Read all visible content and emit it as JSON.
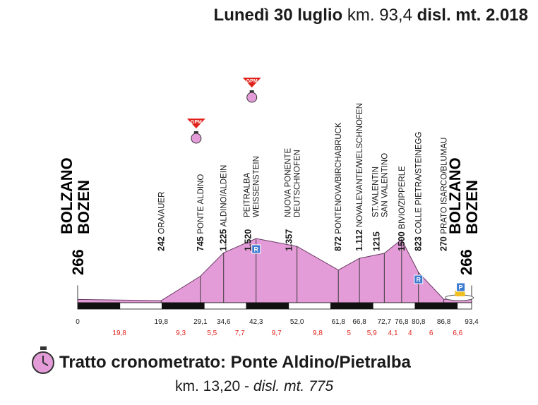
{
  "header": {
    "day": "Lunedì 30 luglio",
    "km_label": "km. 93,4",
    "disl": "disl. mt. 2.018"
  },
  "start_town": {
    "name1": "BOLZANO",
    "name2": "BOZEN",
    "alt": "266"
  },
  "finish_town": {
    "name1": "BOLZANO",
    "name2": "BOZEN",
    "alt": "266"
  },
  "profile": [
    {
      "km": 0,
      "alt": 266
    },
    {
      "km": 19.8,
      "alt": 242
    },
    {
      "km": 29.1,
      "alt": 745
    },
    {
      "km": 34.6,
      "alt": 1225
    },
    {
      "km": 42.3,
      "alt": 1520
    },
    {
      "km": 52.0,
      "alt": 1357
    },
    {
      "km": 61.8,
      "alt": 872
    },
    {
      "km": 66.8,
      "alt": 1112
    },
    {
      "km": 72.7,
      "alt": 1215
    },
    {
      "km": 76.8,
      "alt": 1500
    },
    {
      "km": 80.8,
      "alt": 823
    },
    {
      "km": 86.8,
      "alt": 270
    },
    {
      "km": 93.4,
      "alt": 266
    }
  ],
  "waypoints": [
    {
      "km": 19.8,
      "alt": "242",
      "name": "ORA/AUER"
    },
    {
      "km": 29.1,
      "alt": "745",
      "name": "PONTE ALDINO"
    },
    {
      "km": 34.6,
      "alt": "1.225",
      "name": "ALDINO/ALDEIN"
    },
    {
      "km": 42.3,
      "alt": "1.520",
      "name": "PEITRALBA",
      "name2": "WEISSENSTEIN"
    },
    {
      "km": 52.0,
      "alt": "1.357",
      "name": "NUOVA PONENTE",
      "name2": "DEUTSCHNOFEN"
    },
    {
      "km": 61.8,
      "alt": "872",
      "name": "PONTENOVA/BIRCHABRUCK"
    },
    {
      "km": 66.8,
      "alt": "1.112",
      "name": "NOVALEVANTE/WELSCHNOFEN"
    },
    {
      "km": 72.7,
      "alt": "1215",
      "name": "ST.VALENTIN",
      "name2": "SAN VALENTINO"
    },
    {
      "km": 76.8,
      "alt": "1500",
      "name": "BIVIO/ZIPPERLE"
    },
    {
      "km": 80.8,
      "alt": "823",
      "name": "COLLE PIETRA/STEINEGG"
    },
    {
      "km": 86.8,
      "alt": "270",
      "name": "PRATO ISARCO/BLUMAU"
    }
  ],
  "km_ticks": [
    "0",
    "19,8",
    "29,1",
    "34,6",
    "42,3",
    "52,0",
    "61,8",
    "66,8",
    "72,7",
    "76,8",
    "80,8",
    "86,8",
    "93,4"
  ],
  "segments": [
    "19,8",
    "9,3",
    "5,5",
    "7,7",
    "9,7",
    "9,8",
    "5",
    "5,9",
    "4,1",
    "4",
    "6",
    "6,6"
  ],
  "gpm": [
    "GPM",
    "GPM"
  ],
  "markers": {
    "refresh_label": "R",
    "finish_label": "P"
  },
  "footer": {
    "title": "Tratto cronometrato: Ponte Aldino/Pietralba",
    "km": "km. 13,20",
    "sep": " - ",
    "disl": "disl. mt. 775"
  },
  "colors": {
    "profile": "#e49cd8",
    "segments": "#e0221a",
    "gpm": "#e0221a",
    "stopwatch": "#e49cd8"
  }
}
